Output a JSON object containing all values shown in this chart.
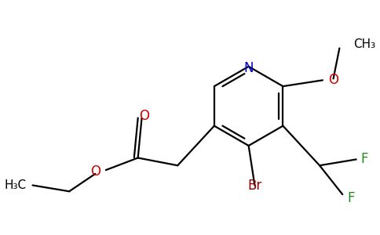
{
  "background_color": "#ffffff",
  "figsize": [
    4.84,
    3.0
  ],
  "dpi": 100,
  "colors": {
    "C": "#000000",
    "N": "#0000cc",
    "O": "#cc0000",
    "Br": "#8b0000",
    "F": "#228b22"
  },
  "lw": 1.6,
  "fontsize": 11.5
}
